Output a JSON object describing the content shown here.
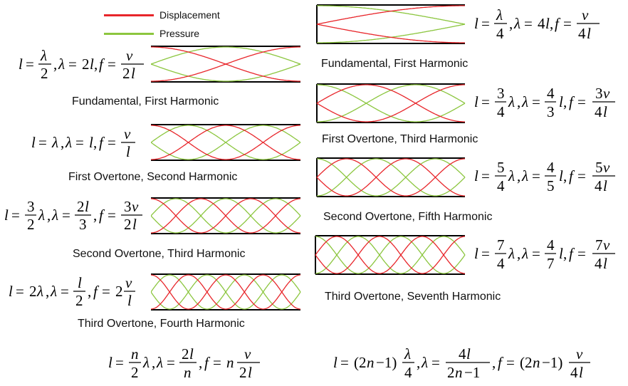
{
  "legend": {
    "displacement": {
      "label": "Displacement",
      "color": "#e8262b"
    },
    "pressure": {
      "label": "Pressure",
      "color": "#8cc63f"
    }
  },
  "open_tubes": [
    {
      "caption": "Fundamental, First Harmonic",
      "formula": "l = λ/2, λ = 2l, f = v/2l",
      "harmonic": 1
    },
    {
      "caption": "First Overtone, Second Harmonic",
      "formula": "l = λ, λ = l, f = v/l",
      "harmonic": 2
    },
    {
      "caption": "Second Overtone, Third Harmonic",
      "formula": "l = 3/2 λ, λ = 2l/3, f = 3v/2l",
      "harmonic": 3
    },
    {
      "caption": "Third Overtone, Fourth Harmonic",
      "formula": "l = 2λ, λ = l/2, f = 2 v/l",
      "harmonic": 4
    }
  ],
  "closed_tubes": [
    {
      "caption": "Fundamental, First Harmonic",
      "formula": "l = λ/4, λ = 4l, f = v/4l",
      "harmonic": 1
    },
    {
      "caption": "First Overtone, Third Harmonic",
      "formula": "l = 3/4 λ, λ = 4/3 l, f = 3v/4l",
      "harmonic": 3
    },
    {
      "caption": "Second Overtone, Fifth Harmonic",
      "formula": "l = 5/4 λ, λ = 4/5 l, f = 5v/4l",
      "harmonic": 5
    },
    {
      "caption": "Third Overtone, Seventh Harmonic",
      "formula": "l = 7/4 λ, λ = 4/7 l, f = 7v/4l",
      "harmonic": 7
    }
  ],
  "general_formulas": {
    "open": "l = n/2 λ, λ = 2l/n, f = n v/2l",
    "closed": "l = (2n − 1) λ/4, λ = 4l/(2n − 1), f = (2n − 1) v/4l"
  }
}
